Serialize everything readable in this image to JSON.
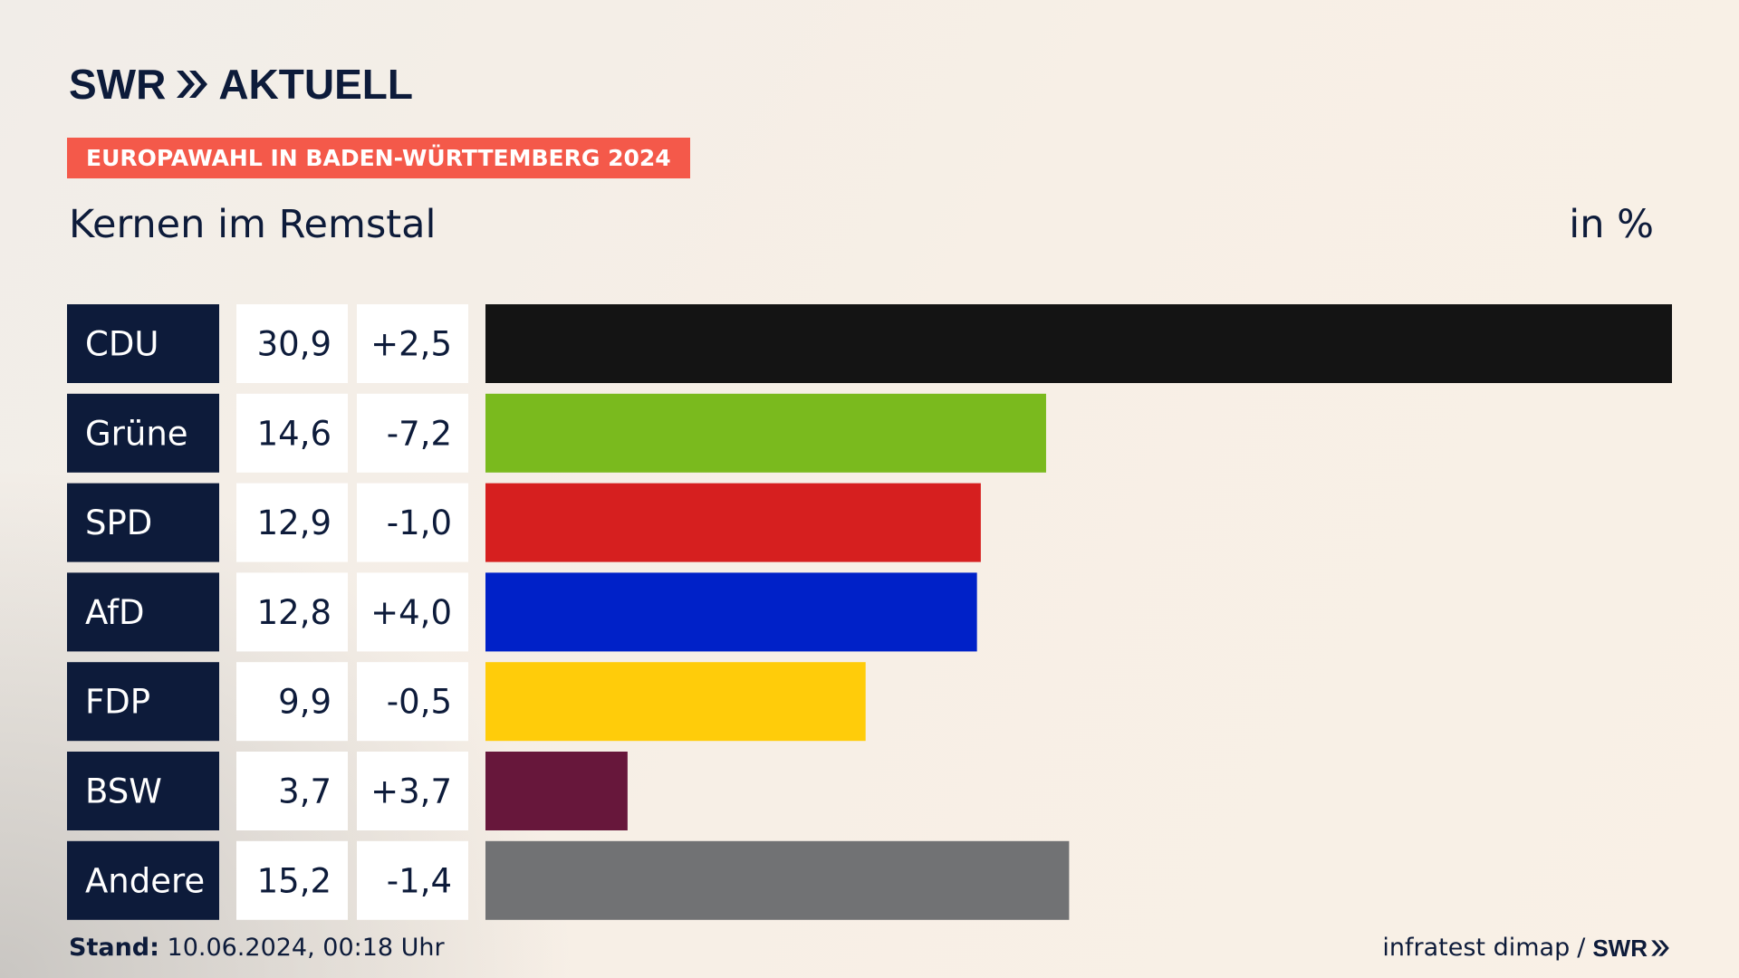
{
  "header": {
    "brand": "SWR",
    "brand_suffix": "AKTUELL",
    "badge": "EUROPAWAHL IN BADEN-WÜRTTEMBERG 2024",
    "subtitle": "Kernen im Remstal",
    "unit": "in %"
  },
  "footer": {
    "stand_label": "Stand:",
    "stand_value": "10.06.2024, 00:18 Uhr",
    "source": "infratest dimap",
    "separator": "/",
    "source_brand": "SWR"
  },
  "colors": {
    "navy": "#0d1b3a",
    "badge": "#f4594a"
  },
  "chart_data": {
    "type": "bar",
    "orientation": "horizontal",
    "categories": [
      "CDU",
      "Grüne",
      "SPD",
      "AfD",
      "FDP",
      "BSW",
      "Andere"
    ],
    "values": [
      30.9,
      14.6,
      12.9,
      12.8,
      9.9,
      3.7,
      15.2
    ],
    "value_labels": [
      "30,9",
      "14,6",
      "12,9",
      "12,8",
      "9,9",
      "3,7",
      "15,2"
    ],
    "change_labels": [
      "+2,5",
      "-7,2",
      "-1,0",
      "+4,0",
      "-0,5",
      "+3,7",
      "-1,4"
    ],
    "changes": [
      2.5,
      -7.2,
      -1.0,
      4.0,
      -0.5,
      3.7,
      -1.4
    ],
    "colors": [
      "#141414",
      "#7aba1e",
      "#d61f1f",
      "#0021c8",
      "#ffcc0a",
      "#67173b",
      "#717274"
    ],
    "xlim": [
      0,
      30.9
    ]
  }
}
